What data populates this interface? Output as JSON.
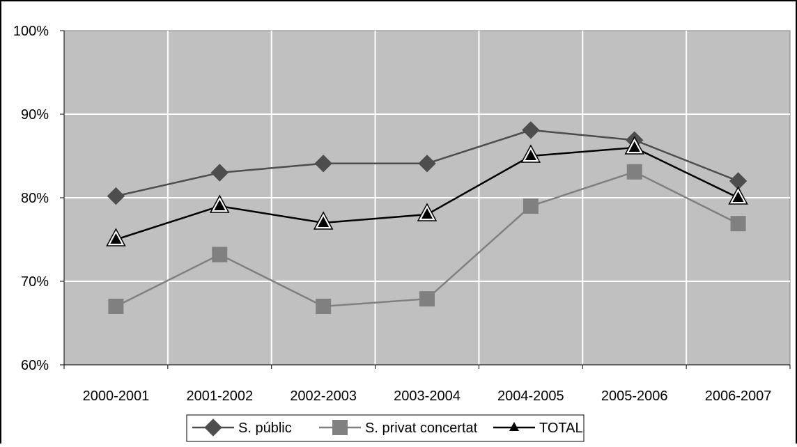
{
  "chart_data": {
    "type": "line",
    "categories": [
      "2000-2001",
      "2001-2002",
      "2002-2003",
      "2003-2004",
      "2004-2005",
      "2005-2006",
      "2006-2007"
    ],
    "series": [
      {
        "name": "S. públic",
        "values": [
          80.2,
          83.0,
          84.1,
          84.1,
          88.1,
          86.9,
          82.0
        ],
        "color": "#4d4d4d",
        "marker": "diamond"
      },
      {
        "name": "S. privat concertat",
        "values": [
          67.0,
          73.2,
          67.0,
          67.9,
          79.0,
          83.1,
          76.9
        ],
        "color": "#808080",
        "marker": "square"
      },
      {
        "name": "TOTAL",
        "values": [
          75.0,
          79.0,
          77.0,
          78.0,
          85.0,
          86.0,
          80.0
        ],
        "color": "#000000",
        "marker": "triangle"
      }
    ],
    "y_ticks": [
      "60%",
      "70%",
      "80%",
      "90%",
      "100%"
    ],
    "ylim": [
      60,
      100
    ],
    "grid": true,
    "plot_background": "#c0c0c0",
    "legend_position": "bottom",
    "title": "",
    "xlabel": "",
    "ylabel": ""
  }
}
